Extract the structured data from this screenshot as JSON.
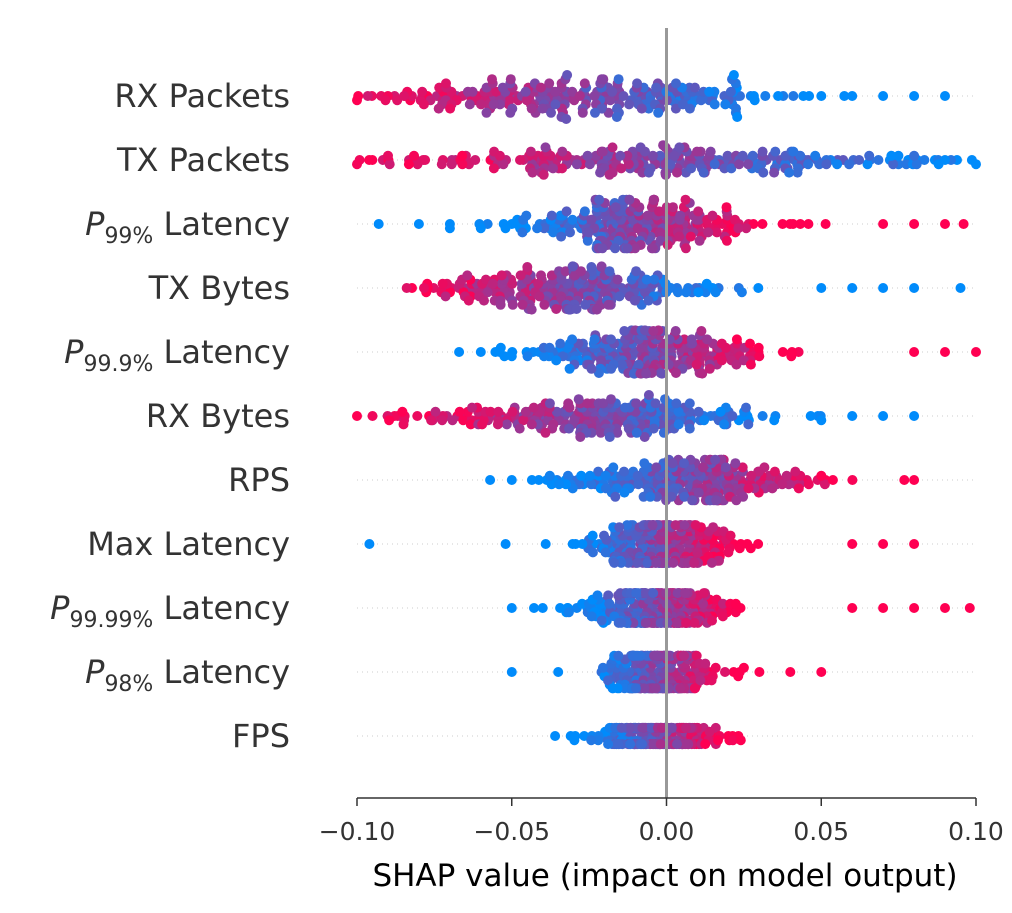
{
  "chart_data": {
    "type": "scatter",
    "variant": "beeswarm",
    "xlabel": "SHAP value (impact on model output)",
    "xlim": [
      -0.1,
      0.1
    ],
    "xticks": [
      {
        "value": -0.1,
        "label": "−0.10"
      },
      {
        "value": -0.05,
        "label": "−0.05"
      },
      {
        "value": 0.0,
        "label": "0.00"
      },
      {
        "value": 0.05,
        "label": "0.05"
      },
      {
        "value": 0.1,
        "label": "0.10"
      }
    ],
    "grid": false,
    "color_scale": {
      "low": "#008bfb",
      "high": "#ff0052"
    },
    "zero_line_color": "#999999",
    "features": [
      {
        "name": "RX Packets",
        "min": -0.1,
        "max": 0.09,
        "center": -0.03,
        "spread": 0.035,
        "width": 0.85,
        "trend": -1,
        "outliers": [
          -0.1,
          0.05,
          0.06,
          0.07,
          0.08,
          0.09
        ]
      },
      {
        "name": "TX Packets",
        "min": -0.1,
        "max": 0.1,
        "center": 0.0,
        "spread": 0.045,
        "width": 0.55,
        "trend": -1,
        "outliers": [
          -0.1,
          -0.09,
          0.08,
          0.09,
          0.1
        ]
      },
      {
        "name": "Latency",
        "sub": "99%",
        "min": -0.093,
        "max": 0.096,
        "center": -0.01,
        "spread": 0.02,
        "width": 0.9,
        "trend": 1,
        "outliers": [
          -0.093,
          -0.08,
          -0.07,
          -0.06,
          -0.05,
          0.07,
          0.08,
          0.09,
          0.096
        ]
      },
      {
        "name": "TX Bytes",
        "min": -0.085,
        "max": 0.095,
        "center": -0.03,
        "spread": 0.025,
        "width": 0.8,
        "trend": -1,
        "outliers": [
          0.05,
          0.06,
          0.07,
          0.08,
          0.095
        ]
      },
      {
        "name": "Latency",
        "sub": "99.9%",
        "min": -0.067,
        "max": 0.1,
        "center": -0.005,
        "spread": 0.02,
        "width": 0.8,
        "trend": 1,
        "outliers": [
          -0.067,
          -0.06,
          -0.05,
          0.08,
          0.09,
          0.1
        ]
      },
      {
        "name": "RX Bytes",
        "min": -0.1,
        "max": 0.081,
        "center": -0.025,
        "spread": 0.03,
        "width": 0.8,
        "trend": -1,
        "outliers": [
          -0.1,
          -0.095,
          0.05,
          0.06,
          0.07,
          0.08
        ]
      },
      {
        "name": "RPS",
        "min": -0.057,
        "max": 0.08,
        "center": 0.01,
        "spread": 0.02,
        "width": 0.75,
        "trend": 1,
        "outliers": [
          -0.057,
          -0.05,
          0.05,
          0.08
        ]
      },
      {
        "name": "Max Latency",
        "min": -0.096,
        "max": 0.08,
        "center": -0.003,
        "spread": 0.012,
        "width": 0.7,
        "trend": 1,
        "outliers": [
          -0.096,
          -0.052,
          0.06,
          0.07,
          0.08
        ]
      },
      {
        "name": "Latency",
        "sub": "99.99%",
        "min": -0.05,
        "max": 0.098,
        "center": -0.003,
        "spread": 0.012,
        "width": 0.55,
        "trend": 1,
        "outliers": [
          -0.05,
          -0.04,
          0.06,
          0.07,
          0.08,
          0.09,
          0.098
        ]
      },
      {
        "name": "Latency",
        "sub": "98%",
        "min": -0.05,
        "max": 0.05,
        "center": -0.002,
        "spread": 0.01,
        "width": 0.6,
        "trend": 1,
        "outliers": [
          -0.05,
          -0.035,
          0.025,
          0.03,
          0.04,
          0.05
        ]
      },
      {
        "name": "FPS",
        "min": -0.036,
        "max": 0.024,
        "center": -0.003,
        "spread": 0.01,
        "width": 0.3,
        "trend": 1,
        "outliers": [
          -0.036,
          0.024
        ]
      }
    ]
  }
}
